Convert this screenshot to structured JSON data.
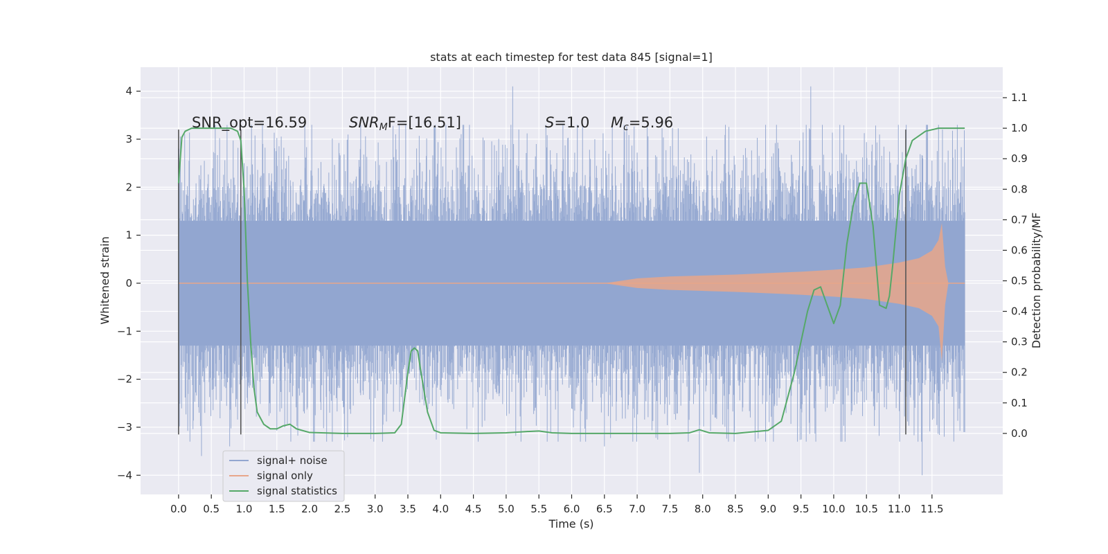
{
  "chart_data": {
    "type": "line",
    "title": "stats at each timestep for test data 845 [signal=1]",
    "xlabel": "Time (s)",
    "ylabel_left": "Whitened strain",
    "ylabel_right": "Detection probability/MF",
    "xlim": [
      -0.58,
      12.58
    ],
    "ylim_left": [
      -4.4,
      4.5
    ],
    "ylim_right": [
      -0.2,
      1.2
    ],
    "x_ticks": [
      0.0,
      0.5,
      1.0,
      1.5,
      2.0,
      2.5,
      3.0,
      3.5,
      4.0,
      4.5,
      5.0,
      5.5,
      6.0,
      6.5,
      7.0,
      7.5,
      8.0,
      8.5,
      9.0,
      9.5,
      10.0,
      10.5,
      11.0,
      11.5
    ],
    "x_tick_labels": [
      "0.0",
      "0.5",
      "1.0",
      "1.5",
      "2.0",
      "2.5",
      "3.0",
      "3.5",
      "4.0",
      "4.5",
      "5.0",
      "5.5",
      "6.0",
      "6.5",
      "7.0",
      "7.5",
      "8.0",
      "8.5",
      "9.0",
      "9.5",
      "10.0",
      "10.5",
      "11.0",
      "11.5"
    ],
    "y_left_ticks": [
      4,
      3,
      2,
      1,
      0,
      -1,
      -2,
      -3,
      -4
    ],
    "y_left_tick_labels": [
      "4",
      "3",
      "2",
      "1",
      "0",
      "−1",
      "−2",
      "−3",
      "−4"
    ],
    "y_right_ticks": [
      1.1,
      1.0,
      0.9,
      0.8,
      0.7,
      0.6,
      0.5,
      0.4,
      0.3,
      0.2,
      0.1,
      0.0
    ],
    "y_right_tick_labels": [
      "1.1",
      "1.0",
      "0.9",
      "0.8",
      "0.7",
      "0.6",
      "0.5",
      "0.4",
      "0.3",
      "0.2",
      "0.1",
      "0.0"
    ],
    "grid": true,
    "legend_position": "lower-left",
    "annotations": {
      "snr_opt": "SNR_opt=16.59",
      "snr_mf_label": "SNR",
      "snr_mf_sub": "M",
      "snr_mf_value": "F=[16.51]",
      "s_label": "S",
      "s_value": "=1.0",
      "mc_label": "M",
      "mc_sub": "c",
      "mc_value": "=5.96"
    },
    "series": [
      {
        "name": "signal+ noise",
        "axis": "left",
        "color": "#92a6d0",
        "t_start": 0.0,
        "t_end": 12.0,
        "envelope_approx": 2.0,
        "peaks": [
          {
            "t": 0.35,
            "v": -3.6
          },
          {
            "t": 0.78,
            "v": -3.4
          },
          {
            "t": 1.62,
            "v": -3.0
          },
          {
            "t": 5.1,
            "v": 4.1
          },
          {
            "t": 6.5,
            "v": -3.4
          },
          {
            "t": 7.95,
            "v": -3.95
          },
          {
            "t": 9.65,
            "v": 4.1
          },
          {
            "t": 11.35,
            "v": -4.0
          },
          {
            "t": 12.0,
            "v": -3.1
          }
        ]
      },
      {
        "name": "signal only",
        "axis": "left",
        "color": "#e8a68a",
        "x": [
          0.0,
          6.5,
          7.0,
          7.5,
          8.0,
          8.5,
          9.0,
          9.5,
          10.0,
          10.5,
          11.0,
          11.3,
          11.5,
          11.6,
          11.65,
          11.7,
          11.75,
          12.0
        ],
        "amplitude": [
          0.0,
          0.0,
          0.1,
          0.14,
          0.16,
          0.18,
          0.21,
          0.24,
          0.28,
          0.33,
          0.43,
          0.52,
          0.68,
          0.9,
          1.25,
          0.35,
          0.0,
          0.0
        ]
      },
      {
        "name": "signal statistics",
        "axis": "right",
        "color": "#55a868",
        "x": [
          0.0,
          0.05,
          0.1,
          0.2,
          0.4,
          0.6,
          0.8,
          0.9,
          0.95,
          1.0,
          1.05,
          1.1,
          1.15,
          1.2,
          1.3,
          1.4,
          1.5,
          1.6,
          1.7,
          1.8,
          2.0,
          2.5,
          3.0,
          3.3,
          3.4,
          3.5,
          3.55,
          3.6,
          3.65,
          3.7,
          3.8,
          3.9,
          4.0,
          4.5,
          5.0,
          5.3,
          5.5,
          5.7,
          6.0,
          6.5,
          7.0,
          7.5,
          7.8,
          7.95,
          8.1,
          8.5,
          9.0,
          9.2,
          9.4,
          9.6,
          9.7,
          9.8,
          9.9,
          10.0,
          10.1,
          10.2,
          10.3,
          10.4,
          10.5,
          10.6,
          10.7,
          10.8,
          10.85,
          10.9,
          11.0,
          11.1,
          11.2,
          11.4,
          11.6,
          11.8,
          12.0
        ],
        "values": [
          0.82,
          0.97,
          0.99,
          1.0,
          1.0,
          1.0,
          1.0,
          0.99,
          0.96,
          0.8,
          0.5,
          0.3,
          0.15,
          0.07,
          0.03,
          0.015,
          0.015,
          0.025,
          0.03,
          0.015,
          0.003,
          0.0,
          0.0,
          0.002,
          0.03,
          0.2,
          0.27,
          0.28,
          0.27,
          0.2,
          0.07,
          0.01,
          0.002,
          0.0,
          0.002,
          0.006,
          0.008,
          0.002,
          0.0,
          0.0,
          0.0,
          0.0,
          0.002,
          0.012,
          0.002,
          0.0,
          0.01,
          0.04,
          0.2,
          0.4,
          0.47,
          0.48,
          0.42,
          0.36,
          0.42,
          0.62,
          0.75,
          0.82,
          0.82,
          0.68,
          0.42,
          0.41,
          0.45,
          0.55,
          0.78,
          0.9,
          0.96,
          0.99,
          1.0,
          1.0,
          1.0
        ]
      }
    ],
    "vertical_markers": [
      0.0,
      0.95,
      11.1
    ]
  }
}
